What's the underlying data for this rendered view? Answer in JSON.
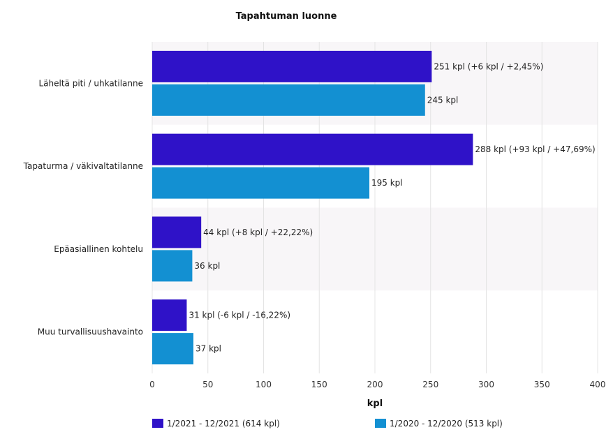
{
  "chart_data": {
    "type": "bar",
    "orientation": "horizontal",
    "title": "Tapahtuman luonne",
    "xlabel": "kpl",
    "ylabel": "",
    "xlim": [
      0,
      400
    ],
    "ticks": [
      0,
      50,
      100,
      150,
      200,
      250,
      300,
      350,
      400
    ],
    "grid": true,
    "legend_position": "bottom",
    "categories": [
      "Läheltä piti / uhkatilanne",
      "Tapaturma / väkivaltatilanne",
      "Epäasiallinen kohtelu",
      "Muu turvallisuushavainto"
    ],
    "series": [
      {
        "name": "1/2021 - 12/2021 (614 kpl)",
        "color": "#2f12c8",
        "values": [
          251,
          288,
          44,
          31
        ],
        "labels": [
          "251 kpl (+6 kpl / +2,45%)",
          "288 kpl (+93 kpl / +47,69%)",
          "44 kpl (+8 kpl / +22,22%)",
          "31 kpl (-6 kpl / -16,22%)"
        ]
      },
      {
        "name": "1/2020 - 12/2020 (513 kpl)",
        "color": "#1390d2",
        "values": [
          245,
          195,
          36,
          37
        ],
        "labels": [
          "245 kpl",
          "195 kpl",
          "36 kpl",
          "37 kpl"
        ]
      }
    ]
  }
}
